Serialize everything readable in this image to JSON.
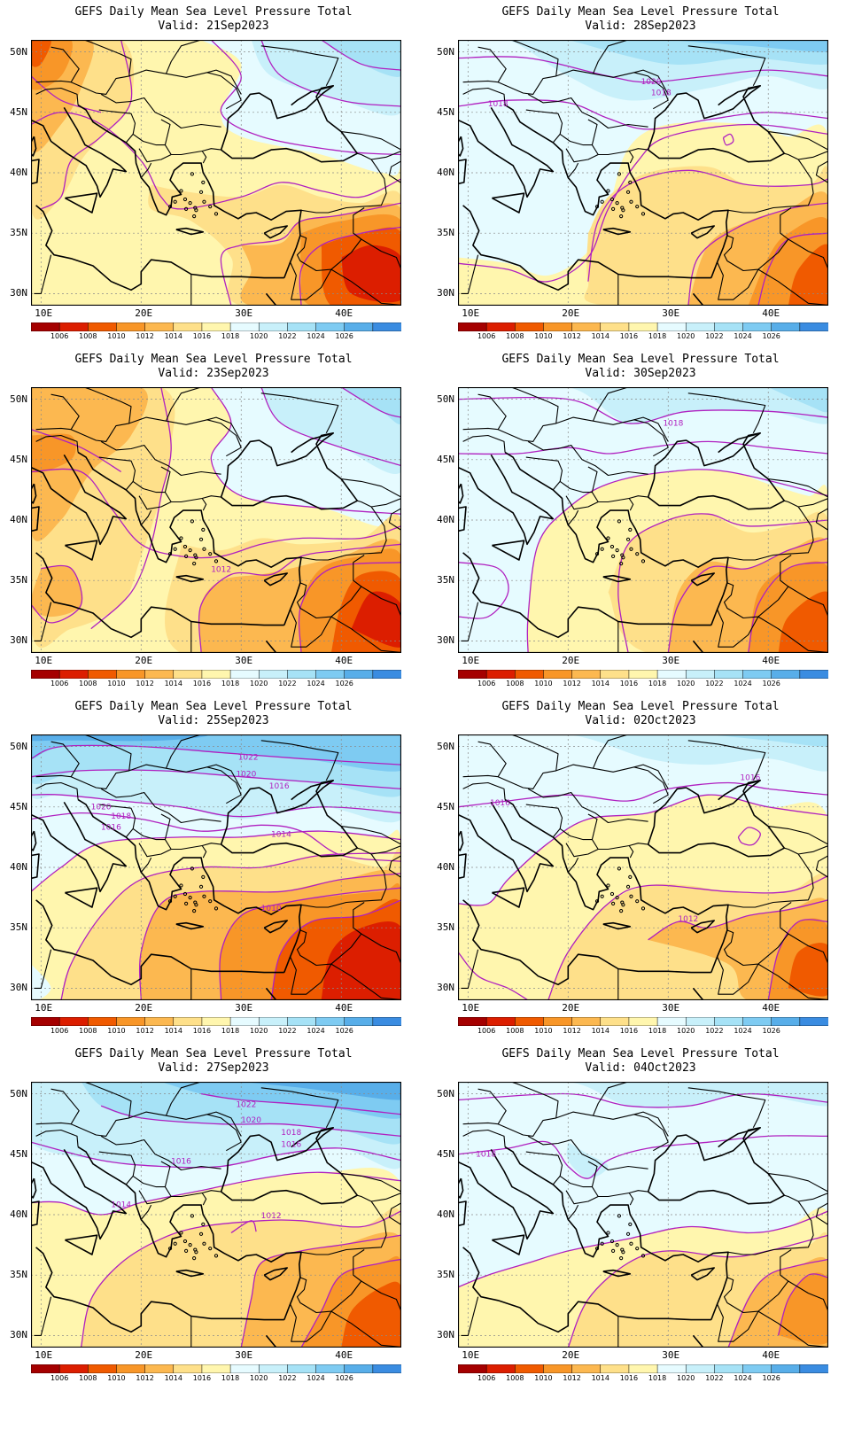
{
  "title_text": "GEFS Daily Mean Sea Level Pressure Total",
  "valid_prefix": "Valid:",
  "axes": {
    "lat_labels": [
      "50N",
      "45N",
      "40N",
      "35N",
      "30N"
    ],
    "lat_values": [
      50,
      45,
      40,
      35,
      30
    ],
    "lon_labels": [
      "10E",
      "20E",
      "30E",
      "40E"
    ],
    "lon_values": [
      10,
      20,
      30,
      40
    ],
    "lon_range": [
      9,
      46
    ],
    "lat_range": [
      29,
      51
    ]
  },
  "colorbar": {
    "labels": [
      "1006",
      "1008",
      "1010",
      "1012",
      "1014",
      "1016",
      "1018",
      "1020",
      "1022",
      "1024",
      "1026"
    ],
    "colors": [
      "#a50000",
      "#dc1e00",
      "#f05a00",
      "#f89628",
      "#fcb850",
      "#fee08a",
      "#fff6ae",
      "#e6fbff",
      "#c8f0fa",
      "#a6e2f6",
      "#7ecbf2",
      "#58aee9",
      "#3a8ce1"
    ]
  },
  "contour_color": "#b020c0",
  "panels": [
    {
      "valid": "21Sep2023",
      "labels": []
    },
    {
      "valid": "28Sep2023",
      "labels": [
        {
          "text": "1020",
          "lon": 28.3,
          "lat": 47.5
        },
        {
          "text": "1018",
          "lon": 29.3,
          "lat": 46.6
        },
        {
          "text": "1018",
          "lon": 13.0,
          "lat": 45.7
        }
      ]
    },
    {
      "valid": "23Sep2023",
      "labels": [
        {
          "text": "1012",
          "lon": 28.0,
          "lat": 35.9
        }
      ]
    },
    {
      "valid": "30Sep2023",
      "labels": [
        {
          "text": "1018",
          "lon": 30.5,
          "lat": 48.0
        }
      ]
    },
    {
      "valid": "25Sep2023",
      "labels": [
        {
          "text": "1022",
          "lon": 30.7,
          "lat": 49.1
        },
        {
          "text": "1020",
          "lon": 30.5,
          "lat": 47.7
        },
        {
          "text": "1016",
          "lon": 33.8,
          "lat": 46.7
        },
        {
          "text": "1020",
          "lon": 16.0,
          "lat": 45.0
        },
        {
          "text": "1018",
          "lon": 18.0,
          "lat": 44.2
        },
        {
          "text": "1016",
          "lon": 17.0,
          "lat": 43.3
        },
        {
          "text": "1014",
          "lon": 34.0,
          "lat": 42.7
        },
        {
          "text": "1010",
          "lon": 33.0,
          "lat": 36.6
        }
      ]
    },
    {
      "valid": "02Oct2023",
      "labels": [
        {
          "text": "1016",
          "lon": 38.2,
          "lat": 47.4
        },
        {
          "text": "1016",
          "lon": 13.2,
          "lat": 45.3
        },
        {
          "text": "1012",
          "lon": 32.0,
          "lat": 35.7
        }
      ]
    },
    {
      "valid": "27Sep2023",
      "labels": [
        {
          "text": "1022",
          "lon": 30.5,
          "lat": 49.1
        },
        {
          "text": "1020",
          "lon": 31.0,
          "lat": 47.8
        },
        {
          "text": "1018",
          "lon": 35.0,
          "lat": 46.8
        },
        {
          "text": "1016",
          "lon": 35.0,
          "lat": 45.8
        },
        {
          "text": "1016",
          "lon": 24.0,
          "lat": 44.4
        },
        {
          "text": "1014",
          "lon": 18.0,
          "lat": 40.8
        },
        {
          "text": "1012",
          "lon": 33.0,
          "lat": 39.9
        }
      ]
    },
    {
      "valid": "04Oct2023",
      "labels": [
        {
          "text": "1018",
          "lon": 11.8,
          "lat": 45.0
        }
      ]
    }
  ]
}
